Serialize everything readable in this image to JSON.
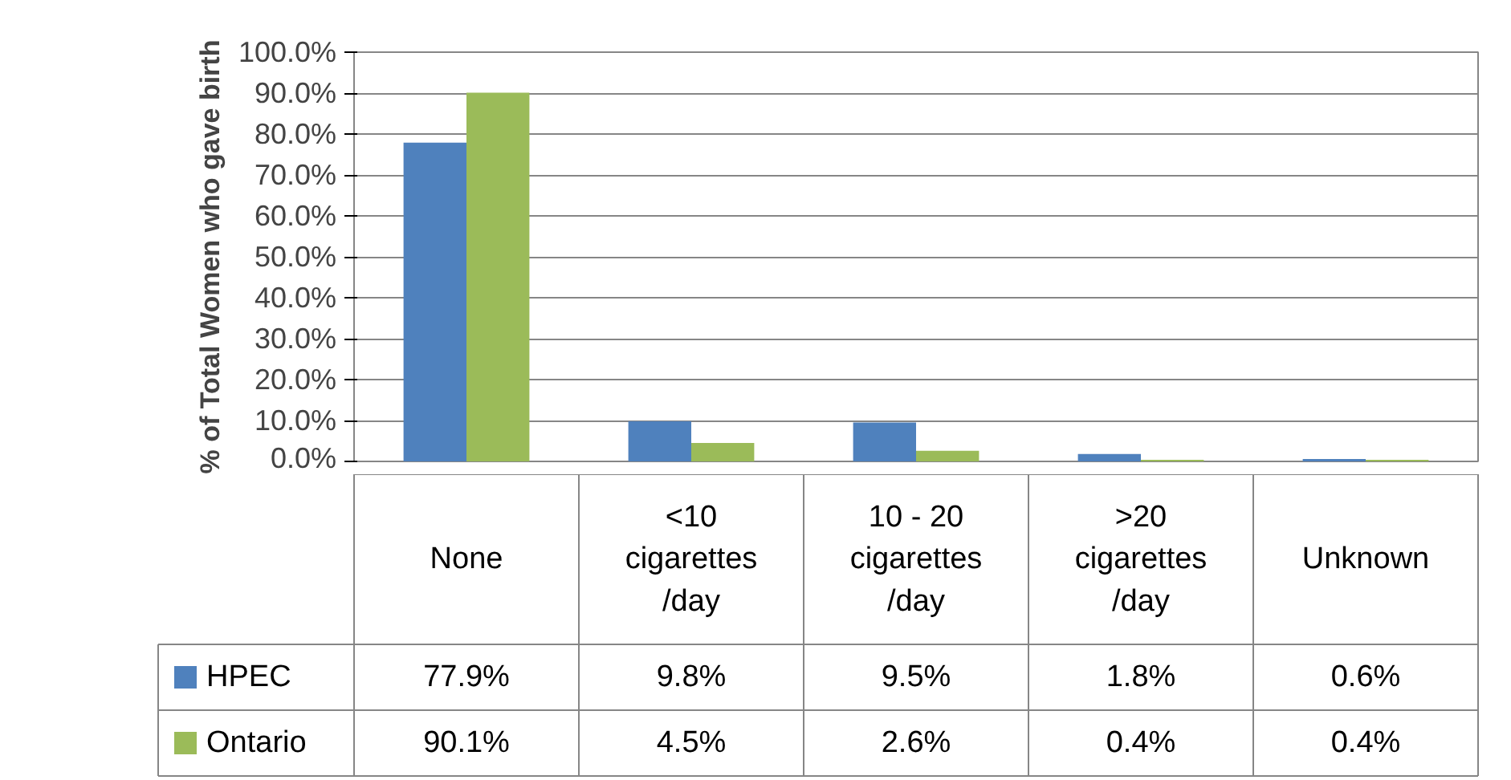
{
  "chart_data": {
    "type": "bar",
    "ylabel": "% of Total Women who gave birth",
    "categories": [
      "None",
      "<10\ncigarettes\n/day",
      "10 - 20\ncigarettes\n/day",
      ">20\ncigarettes\n/day",
      "Unknown"
    ],
    "series": [
      {
        "name": "HPEC",
        "color": "#4f81bd",
        "values": [
          77.9,
          9.8,
          9.5,
          1.8,
          0.6
        ],
        "value_labels": [
          "77.9%",
          "9.8%",
          "9.5%",
          "1.8%",
          "0.6%"
        ]
      },
      {
        "name": "Ontario",
        "color": "#9bbb59",
        "values": [
          90.1,
          4.5,
          2.6,
          0.4,
          0.4
        ],
        "value_labels": [
          "90.1%",
          "4.5%",
          "2.6%",
          "0.4%",
          "0.4%"
        ]
      }
    ],
    "ylim": [
      0,
      100
    ],
    "yticks": [
      {
        "value": 0,
        "label": "0.0%"
      },
      {
        "value": 10,
        "label": "10.0%"
      },
      {
        "value": 20,
        "label": "20.0%"
      },
      {
        "value": 30,
        "label": "30.0%"
      },
      {
        "value": 40,
        "label": "40.0%"
      },
      {
        "value": 50,
        "label": "50.0%"
      },
      {
        "value": 60,
        "label": "60.0%"
      },
      {
        "value": 70,
        "label": "70.0%"
      },
      {
        "value": 80,
        "label": "80.0%"
      },
      {
        "value": 90,
        "label": "90.0%"
      },
      {
        "value": 100,
        "label": "100.0%"
      }
    ],
    "grid": "y",
    "legend": "bottom"
  }
}
